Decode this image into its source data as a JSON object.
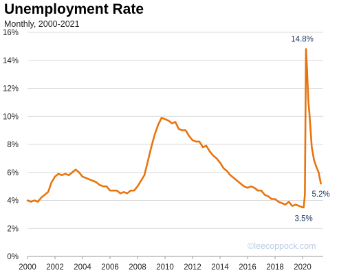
{
  "chart_data": {
    "type": "line",
    "title": "Unemployment Rate",
    "subtitle": "Monthly, 2000-2021",
    "xlabel": "",
    "ylabel": "",
    "xlim": [
      2000,
      2021.5
    ],
    "ylim": [
      0,
      16
    ],
    "x_ticks": [
      "2000",
      "2002",
      "2004",
      "2006",
      "2008",
      "2010",
      "2012",
      "2014",
      "2016",
      "2018",
      "2020"
    ],
    "y_ticks": [
      "0%",
      "2%",
      "4%",
      "6%",
      "8%",
      "10%",
      "12%",
      "14%",
      "16%"
    ],
    "grid": "horizontal",
    "line_color": "#e8740c",
    "annotation_color": "#1f3b63",
    "series": [
      {
        "x": [
          2000.0,
          2000.25,
          2000.5,
          2000.75,
          2001.0,
          2001.25,
          2001.5,
          2001.75,
          2002.0,
          2002.25,
          2002.5,
          2002.75,
          2003.0,
          2003.25,
          2003.5,
          2003.75,
          2004.0,
          2004.25,
          2004.5,
          2004.75,
          2005.0,
          2005.25,
          2005.5,
          2005.75,
          2006.0,
          2006.25,
          2006.5,
          2006.75,
          2007.0,
          2007.25,
          2007.5,
          2007.75,
          2008.0,
          2008.25,
          2008.5,
          2008.75,
          2009.0,
          2009.25,
          2009.5,
          2009.75,
          2010.0,
          2010.25,
          2010.5,
          2010.75,
          2011.0,
          2011.25,
          2011.5,
          2011.75,
          2012.0,
          2012.25,
          2012.5,
          2012.75,
          2013.0,
          2013.25,
          2013.5,
          2013.75,
          2014.0,
          2014.25,
          2014.5,
          2014.75,
          2015.0,
          2015.25,
          2015.5,
          2015.75,
          2016.0,
          2016.25,
          2016.5,
          2016.75,
          2017.0,
          2017.25,
          2017.5,
          2017.75,
          2018.0,
          2018.25,
          2018.5,
          2018.75,
          2019.0,
          2019.25,
          2019.5,
          2019.75,
          2020.0,
          2020.08,
          2020.17,
          2020.25,
          2020.33,
          2020.42,
          2020.5,
          2020.67,
          2020.83,
          2021.0,
          2021.17,
          2021.33
        ],
        "y": [
          4.0,
          3.9,
          4.0,
          3.9,
          4.2,
          4.4,
          4.6,
          5.3,
          5.7,
          5.9,
          5.8,
          5.9,
          5.8,
          6.0,
          6.2,
          6.0,
          5.7,
          5.6,
          5.5,
          5.4,
          5.3,
          5.1,
          5.0,
          5.0,
          4.7,
          4.7,
          4.7,
          4.5,
          4.6,
          4.5,
          4.7,
          4.7,
          5.0,
          5.4,
          5.8,
          6.8,
          7.8,
          8.7,
          9.4,
          9.9,
          9.8,
          9.7,
          9.5,
          9.6,
          9.1,
          9.0,
          9.0,
          8.6,
          8.3,
          8.2,
          8.2,
          7.8,
          7.9,
          7.5,
          7.2,
          7.0,
          6.7,
          6.3,
          6.1,
          5.8,
          5.6,
          5.4,
          5.2,
          5.0,
          4.9,
          5.0,
          4.9,
          4.7,
          4.7,
          4.4,
          4.3,
          4.1,
          4.1,
          3.9,
          3.8,
          3.7,
          3.9,
          3.6,
          3.7,
          3.6,
          3.5,
          3.5,
          4.4,
          14.8,
          13.3,
          11.1,
          10.2,
          7.8,
          6.9,
          6.4,
          6.0,
          5.2
        ]
      }
    ],
    "annotations": [
      {
        "text": "14.8%",
        "x": 2020.33,
        "y": 14.8
      },
      {
        "text": "3.5%",
        "x": 2020.08,
        "y": 3.5
      },
      {
        "text": "5.2%",
        "x": 2021.33,
        "y": 5.2
      }
    ],
    "credit": "©leecoppock.com"
  }
}
